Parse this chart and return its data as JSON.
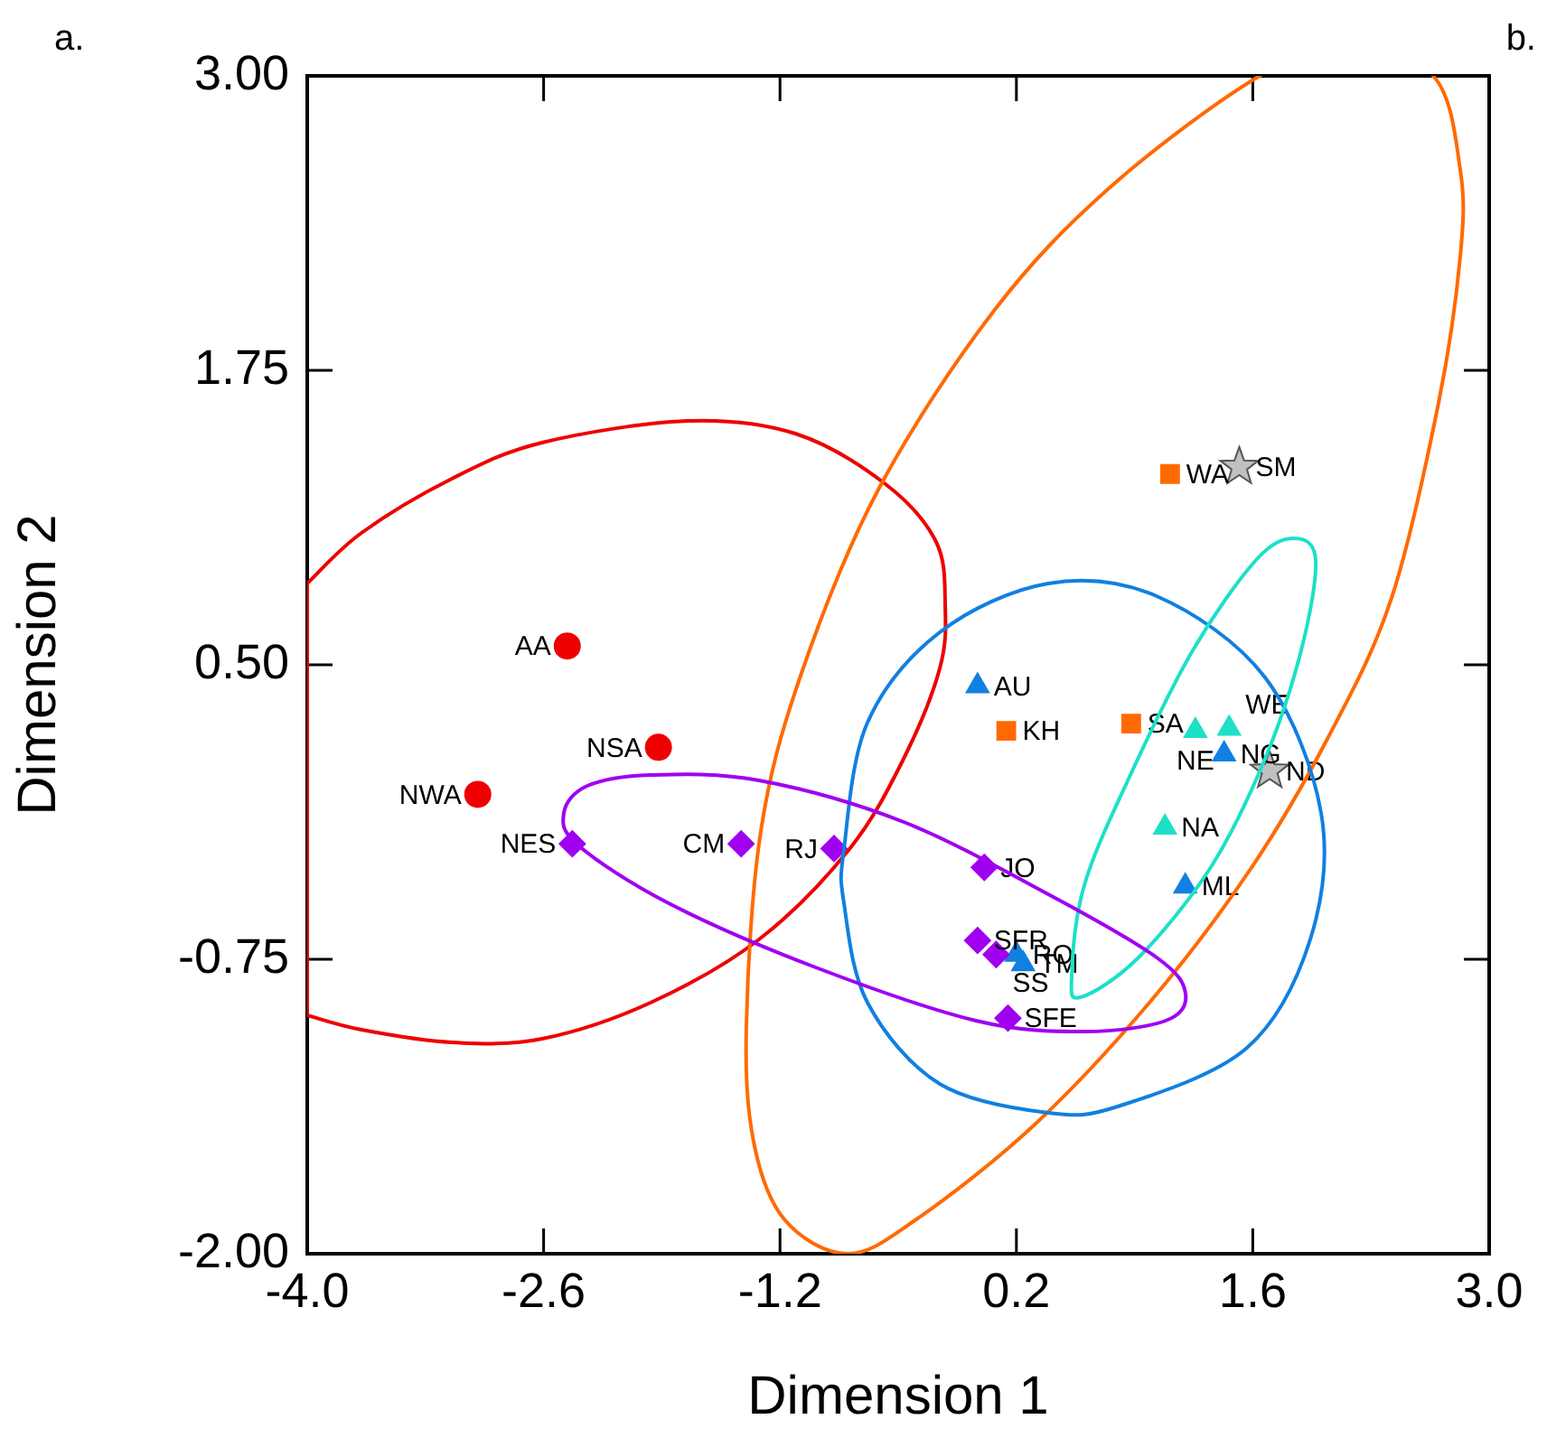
{
  "chart_data": {
    "type": "scatter",
    "xlabel": "Dimension 1",
    "ylabel": "Dimension 2",
    "xlim": [
      -4.0,
      3.0
    ],
    "ylim": [
      -2.0,
      3.0
    ],
    "xticks": [
      {
        "value": -4.0,
        "label": "-4.0"
      },
      {
        "value": -2.6,
        "label": "-2.6"
      },
      {
        "value": -1.2,
        "label": "-1.2"
      },
      {
        "value": 0.2,
        "label": "0.2"
      },
      {
        "value": 1.6,
        "label": "1.6"
      },
      {
        "value": 3.0,
        "label": "3.0"
      }
    ],
    "yticks": [
      {
        "value": -2.0,
        "label": "-2.00"
      },
      {
        "value": -0.75,
        "label": "-0.75"
      },
      {
        "value": 0.5,
        "label": "0.50"
      },
      {
        "value": 1.75,
        "label": "1.75"
      },
      {
        "value": 3.0,
        "label": "3.00"
      }
    ],
    "series": [
      {
        "type": "scatter",
        "color": "#ee0000",
        "marker": "circle",
        "x": [
          -2.46,
          -1.92,
          -2.99
        ],
        "values": [
          0.58,
          0.15,
          -0.05
        ]
      },
      {
        "type": "scatter",
        "color": "#a000f0",
        "marker": "diamond",
        "x": [
          -2.43,
          -1.43,
          -0.88,
          0.01,
          -0.03,
          0.08,
          0.15
        ],
        "values": [
          -0.26,
          -0.26,
          -0.28,
          -0.36,
          -0.67,
          -0.73,
          -1.0
        ]
      },
      {
        "type": "scatter",
        "color": "#1180e0",
        "marker": "triangle",
        "x": [
          -0.03,
          1.43,
          1.2,
          0.2,
          0.24
        ],
        "values": [
          0.41,
          0.12,
          -0.44,
          -0.73,
          -0.77
        ]
      },
      {
        "type": "scatter",
        "color": "#ff6a00",
        "marker": "square",
        "x": [
          1.11,
          0.14,
          0.88
        ],
        "values": [
          1.31,
          0.22,
          0.25
        ]
      },
      {
        "type": "scatter",
        "color": "#1de0c8",
        "marker": "triangle",
        "x": [
          1.26,
          1.46,
          1.08
        ],
        "values": [
          0.22,
          0.23,
          -0.19
        ]
      },
      {
        "type": "scatter",
        "color": "#c0c0c0",
        "marker": "star",
        "x": [
          1.52,
          1.7
        ],
        "values": [
          1.34,
          0.05
        ]
      }
    ],
    "annotations": [
      "a.",
      "b.",
      {
        "text": "AA",
        "x": -2.46,
        "y": 0.58
      },
      {
        "text": "NSA",
        "x": -1.92,
        "y": 0.15
      },
      {
        "text": "NWA",
        "x": -2.99,
        "y": -0.05
      },
      {
        "text": "NES",
        "x": -2.43,
        "y": -0.26
      },
      {
        "text": "CM",
        "x": -1.43,
        "y": -0.26
      },
      {
        "text": "RJ",
        "x": -0.88,
        "y": -0.28
      },
      {
        "text": "JO",
        "x": 0.01,
        "y": -0.36
      },
      {
        "text": "SFR",
        "x": -0.03,
        "y": -0.67
      },
      {
        "text": "SS",
        "x": 0.08,
        "y": -0.73
      },
      {
        "text": "SFE",
        "x": 0.15,
        "y": -1.0
      },
      {
        "text": "AU",
        "x": -0.03,
        "y": 0.41
      },
      {
        "text": "NG",
        "x": 1.43,
        "y": 0.12
      },
      {
        "text": "ML",
        "x": 1.2,
        "y": -0.44
      },
      {
        "text": "RO",
        "x": 0.2,
        "y": -0.73
      },
      {
        "text": "TM",
        "x": 0.24,
        "y": -0.77
      },
      {
        "text": "WA",
        "x": 1.11,
        "y": 1.31
      },
      {
        "text": "KH",
        "x": 0.14,
        "y": 0.22
      },
      {
        "text": "SA",
        "x": 0.88,
        "y": 0.25
      },
      {
        "text": "NE",
        "x": 1.26,
        "y": 0.22
      },
      {
        "text": "WE",
        "x": 1.46,
        "y": 0.23
      },
      {
        "text": "NA",
        "x": 1.08,
        "y": -0.19
      },
      {
        "text": "SM",
        "x": 1.52,
        "y": 1.34
      },
      {
        "text": "ND",
        "x": 1.7,
        "y": 0.05
      }
    ]
  }
}
